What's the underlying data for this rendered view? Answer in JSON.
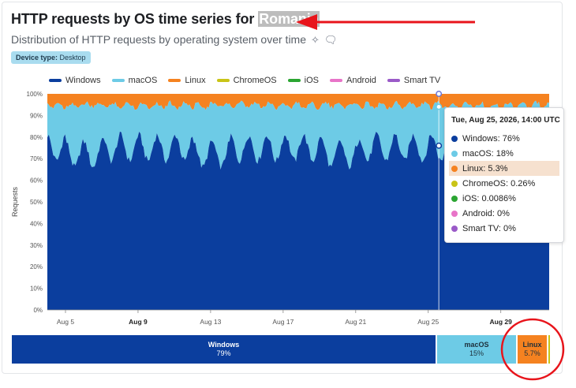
{
  "header": {
    "title_prefix": "HTTP requests by OS time series for",
    "title_country": "Romania",
    "subtitle": "Distribution of HTTP requests by operating system over time",
    "sparkle_icon": "sparkle-icon",
    "comment_icon": "comment-icon",
    "badge_label": "Device type:",
    "badge_value": "Desktop"
  },
  "colors": {
    "Windows": "#0b3e9e",
    "macOS": "#6dcbe6",
    "Linux": "#f58220",
    "ChromeOS": "#c9c417",
    "iOS": "#2ba532",
    "Android": "#e874c8",
    "Smart TV": "#9a5ac8",
    "annotation": "#e8141b"
  },
  "chart_data": {
    "type": "area",
    "stacked": true,
    "ylabel": "Requests",
    "yticks": [
      "0%",
      "10%",
      "20%",
      "30%",
      "40%",
      "50%",
      "60%",
      "70%",
      "80%",
      "90%",
      "100%"
    ],
    "xticks": [
      {
        "label": "Aug 5",
        "bold": false
      },
      {
        "label": "Aug 9",
        "bold": true
      },
      {
        "label": "Aug 13",
        "bold": false
      },
      {
        "label": "Aug 17",
        "bold": false
      },
      {
        "label": "Aug 21",
        "bold": false
      },
      {
        "label": "Aug 25",
        "bold": false
      },
      {
        "label": "Aug 29",
        "bold": true
      }
    ],
    "ylim": [
      0,
      100
    ],
    "x_range": [
      "2026-08-04",
      "2026-08-31"
    ],
    "legend": [
      "Windows",
      "macOS",
      "Linux",
      "ChromeOS",
      "iOS",
      "Android",
      "Smart TV"
    ],
    "series_summary": {
      "Windows": "oscillating approx. 68% to 82%",
      "macOS": "approx. 14% to 27%",
      "Linux": "approx. 3% to 7%"
    },
    "tooltip": {
      "title": "Tue, Aug 25, 2026, 14:00 UTC",
      "rows": [
        {
          "name": "Windows",
          "value": "76%"
        },
        {
          "name": "macOS",
          "value": "18%"
        },
        {
          "name": "Linux",
          "value": "5.3%"
        },
        {
          "name": "ChromeOS",
          "value": "0.26%"
        },
        {
          "name": "iOS",
          "value": "0.0086%"
        },
        {
          "name": "Android",
          "value": "0%"
        },
        {
          "name": "Smart TV",
          "value": "0%"
        }
      ],
      "highlighted": "Linux"
    },
    "summary_bar": [
      {
        "name": "Windows",
        "value": "79%",
        "share": 79
      },
      {
        "name": "macOS",
        "value": "15%",
        "share": 15
      },
      {
        "name": "Linux",
        "value": "5.7%",
        "share": 5.7
      }
    ]
  }
}
